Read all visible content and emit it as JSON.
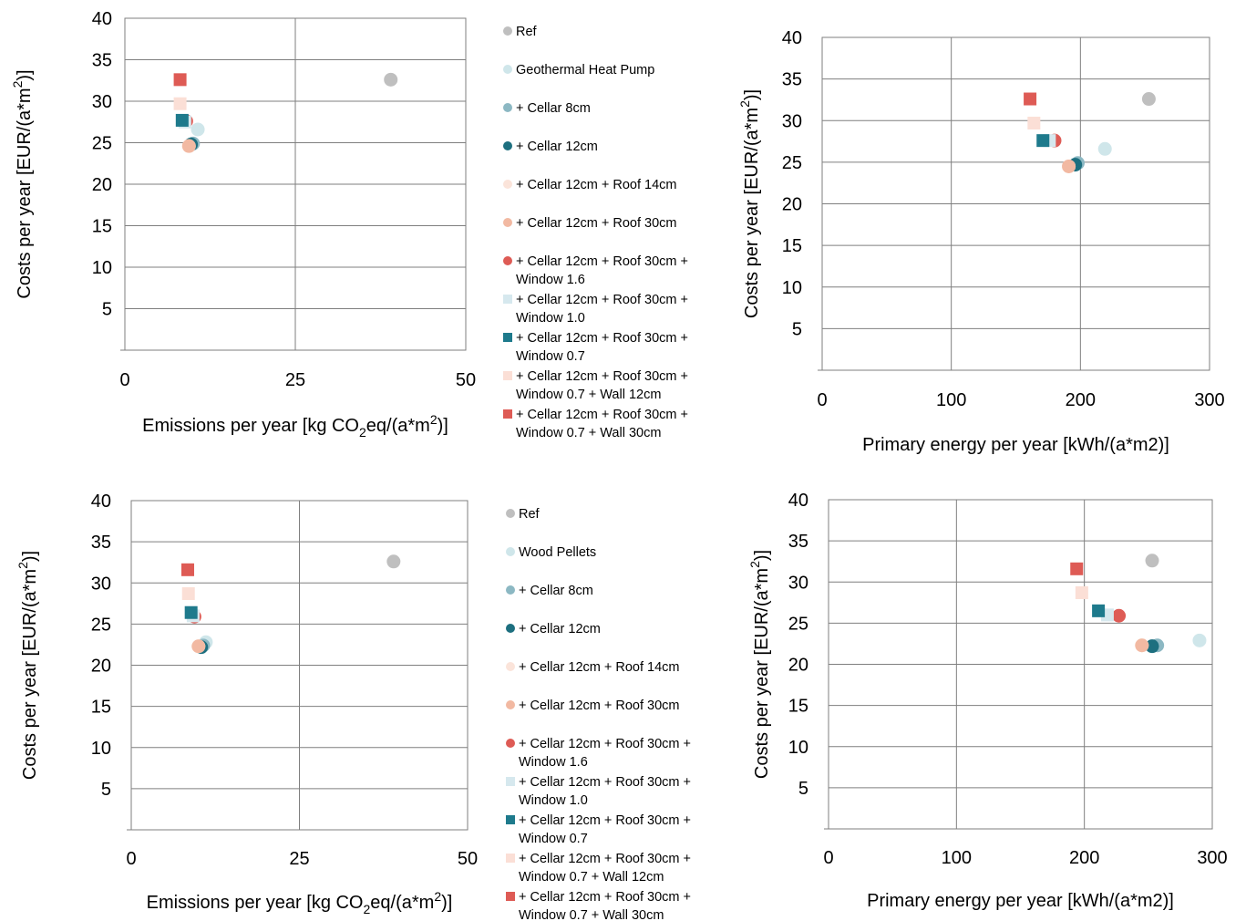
{
  "colors": {
    "ref": "#bfbfbf",
    "primary_option": "#cfe6ea",
    "cellar_8cm": "#8cb8c3",
    "cellar_12cm": "#1d6f7f",
    "roof_14cm": "#fbe4da",
    "roof_30cm": "#f2b9a2",
    "window_16": "#de5b55",
    "window_10": "#d6e8ee",
    "window_07": "#1e7a8c",
    "wall_12cm": "#fbdfd6",
    "wall_30cm": "#de5b55",
    "grid": "#7f7f7f"
  },
  "legends": [
    {
      "entries": [
        {
          "label": [
            "Ref"
          ],
          "color": "ref",
          "marker": "circle"
        },
        {
          "label": [
            "Geothermal Heat Pump"
          ],
          "color": "primary_option",
          "marker": "circle"
        },
        {
          "label": [
            "+ Cellar 8cm"
          ],
          "color": "cellar_8cm",
          "marker": "circle"
        },
        {
          "label": [
            "+ Cellar 12cm"
          ],
          "color": "cellar_12cm",
          "marker": "circle"
        },
        {
          "label": [
            "+ Cellar 12cm + Roof 14cm"
          ],
          "color": "roof_14cm",
          "marker": "circle"
        },
        {
          "label": [
            "+ Cellar 12cm + Roof 30cm"
          ],
          "color": "roof_30cm",
          "marker": "circle"
        },
        {
          "label": [
            "+ Cellar 12cm + Roof 30cm +",
            "Window 1.6"
          ],
          "color": "window_16",
          "marker": "circle"
        },
        {
          "label": [
            "+ Cellar 12cm + Roof 30cm +",
            "Window 1.0"
          ],
          "color": "window_10",
          "marker": "square"
        },
        {
          "label": [
            "+ Cellar 12cm + Roof 30cm +",
            "Window 0.7"
          ],
          "color": "window_07",
          "marker": "square"
        },
        {
          "label": [
            "+ Cellar 12cm + Roof 30cm +",
            "Window 0.7 + Wall 12cm"
          ],
          "color": "wall_12cm",
          "marker": "square"
        },
        {
          "label": [
            "+ Cellar 12cm + Roof 30cm +",
            "Window 0.7 + Wall 30cm"
          ],
          "color": "wall_30cm",
          "marker": "square"
        }
      ]
    },
    {
      "entries": [
        {
          "label": [
            "Ref"
          ],
          "color": "ref",
          "marker": "circle"
        },
        {
          "label": [
            "Wood Pellets"
          ],
          "color": "primary_option",
          "marker": "circle"
        },
        {
          "label": [
            "+ Cellar 8cm"
          ],
          "color": "cellar_8cm",
          "marker": "circle"
        },
        {
          "label": [
            "+ Cellar 12cm"
          ],
          "color": "cellar_12cm",
          "marker": "circle"
        },
        {
          "label": [
            "+ Cellar 12cm + Roof 14cm"
          ],
          "color": "roof_14cm",
          "marker": "circle"
        },
        {
          "label": [
            "+ Cellar 12cm + Roof 30cm"
          ],
          "color": "roof_30cm",
          "marker": "circle"
        },
        {
          "label": [
            "+ Cellar 12cm + Roof 30cm +",
            "Window 1.6"
          ],
          "color": "window_16",
          "marker": "circle"
        },
        {
          "label": [
            "+ Cellar 12cm + Roof 30cm +",
            "Window 1.0"
          ],
          "color": "window_10",
          "marker": "square"
        },
        {
          "label": [
            "+ Cellar 12cm + Roof 30cm +",
            "Window 0.7"
          ],
          "color": "window_07",
          "marker": "square"
        },
        {
          "label": [
            "+ Cellar 12cm + Roof 30cm +",
            "Window 0.7 + Wall 12cm"
          ],
          "color": "wall_12cm",
          "marker": "square"
        },
        {
          "label": [
            "+ Cellar 12cm + Roof 30cm +",
            "Window 0.7 + Wall 30cm"
          ],
          "color": "wall_30cm",
          "marker": "square"
        }
      ]
    }
  ],
  "chart_data": [
    {
      "type": "scatter",
      "title": "",
      "xlabel": {
        "pre": "Emissions per year [kg CO",
        "sub": "2",
        "mid": "eq/(a*m",
        "sup": "2",
        "post": ")]"
      },
      "ylabel": {
        "pre": "Costs per year [EUR/(a*m",
        "sup": "2",
        "post": ")]"
      },
      "xlim": [
        0,
        50
      ],
      "ylim": [
        0,
        40
      ],
      "xticks": [
        0,
        25,
        50
      ],
      "yticks": [
        5,
        10,
        15,
        20,
        25,
        30,
        35,
        40
      ],
      "grid": true,
      "points": [
        {
          "x": 39,
          "y": 32.6,
          "color": "ref",
          "marker": "circle"
        },
        {
          "x": 10.7,
          "y": 26.6,
          "color": "primary_option",
          "marker": "circle"
        },
        {
          "x": 10.0,
          "y": 24.9,
          "color": "cellar_8cm",
          "marker": "circle"
        },
        {
          "x": 9.7,
          "y": 24.8,
          "color": "cellar_12cm",
          "marker": "circle"
        },
        {
          "x": 9.4,
          "y": 24.6,
          "color": "roof_14cm",
          "marker": "circle"
        },
        {
          "x": 9.4,
          "y": 24.6,
          "color": "roof_30cm",
          "marker": "circle"
        },
        {
          "x": 9.0,
          "y": 27.6,
          "color": "window_16",
          "marker": "circle"
        },
        {
          "x": 8.8,
          "y": 27.5,
          "color": "window_10",
          "marker": "square"
        },
        {
          "x": 8.4,
          "y": 27.7,
          "color": "window_07",
          "marker": "square"
        },
        {
          "x": 8.1,
          "y": 29.7,
          "color": "wall_12cm",
          "marker": "square"
        },
        {
          "x": 8.1,
          "y": 32.6,
          "color": "wall_30cm",
          "marker": "square"
        }
      ]
    },
    {
      "type": "scatter",
      "title": "",
      "xlabel": {
        "pre": "Primary energy per year [kWh/(a*m2)]"
      },
      "ylabel": {
        "pre": "Costs per year [EUR/(a*m",
        "sup": "2",
        "post": ")]"
      },
      "xlim": [
        0,
        300
      ],
      "ylim": [
        0,
        40
      ],
      "xticks": [
        0,
        100,
        200,
        300
      ],
      "yticks": [
        5,
        10,
        15,
        20,
        25,
        30,
        35,
        40
      ],
      "grid": true,
      "points": [
        {
          "x": 253,
          "y": 32.6,
          "color": "ref",
          "marker": "circle"
        },
        {
          "x": 219,
          "y": 26.6,
          "color": "primary_option",
          "marker": "circle"
        },
        {
          "x": 198,
          "y": 24.9,
          "color": "cellar_8cm",
          "marker": "circle"
        },
        {
          "x": 196,
          "y": 24.7,
          "color": "cellar_12cm",
          "marker": "circle"
        },
        {
          "x": 191,
          "y": 24.5,
          "color": "roof_14cm",
          "marker": "circle"
        },
        {
          "x": 191,
          "y": 24.5,
          "color": "roof_30cm",
          "marker": "circle"
        },
        {
          "x": 180,
          "y": 27.6,
          "color": "window_16",
          "marker": "circle"
        },
        {
          "x": 176,
          "y": 27.6,
          "color": "window_10",
          "marker": "square"
        },
        {
          "x": 171,
          "y": 27.6,
          "color": "window_07",
          "marker": "square"
        },
        {
          "x": 164,
          "y": 29.7,
          "color": "wall_12cm",
          "marker": "square"
        },
        {
          "x": 161,
          "y": 32.6,
          "color": "wall_30cm",
          "marker": "square"
        }
      ]
    },
    {
      "type": "scatter",
      "title": "",
      "xlabel": {
        "pre": "Emissions per year [kg CO",
        "sub": "2",
        "mid": "eq/(a*m",
        "sup": "2",
        "post": ")]"
      },
      "ylabel": {
        "pre": "Costs per year [EUR/(a*m",
        "sup": "2",
        "post": ")]"
      },
      "xlim": [
        0,
        50
      ],
      "ylim": [
        0,
        40
      ],
      "xticks": [
        0,
        25,
        50
      ],
      "yticks": [
        5,
        10,
        15,
        20,
        25,
        30,
        35,
        40
      ],
      "grid": true,
      "points": [
        {
          "x": 39,
          "y": 32.6,
          "color": "ref",
          "marker": "circle"
        },
        {
          "x": 11.1,
          "y": 22.8,
          "color": "primary_option",
          "marker": "circle"
        },
        {
          "x": 10.7,
          "y": 22.4,
          "color": "cellar_8cm",
          "marker": "circle"
        },
        {
          "x": 10.4,
          "y": 22.2,
          "color": "cellar_12cm",
          "marker": "circle"
        },
        {
          "x": 10.0,
          "y": 22.3,
          "color": "roof_14cm",
          "marker": "circle"
        },
        {
          "x": 10.0,
          "y": 22.3,
          "color": "roof_30cm",
          "marker": "circle"
        },
        {
          "x": 9.4,
          "y": 25.9,
          "color": "window_16",
          "marker": "circle"
        },
        {
          "x": 9.2,
          "y": 26.0,
          "color": "window_10",
          "marker": "square"
        },
        {
          "x": 8.9,
          "y": 26.4,
          "color": "window_07",
          "marker": "square"
        },
        {
          "x": 8.5,
          "y": 28.7,
          "color": "wall_12cm",
          "marker": "square"
        },
        {
          "x": 8.4,
          "y": 31.6,
          "color": "wall_30cm",
          "marker": "square"
        }
      ]
    },
    {
      "type": "scatter",
      "title": "",
      "xlabel": {
        "pre": "Primary energy per year [kWh/(a*m2)]"
      },
      "ylabel": {
        "pre": "Costs per year [EUR/(a*m",
        "sup": "2",
        "post": ")]"
      },
      "xlim": [
        0,
        300
      ],
      "ylim": [
        0,
        40
      ],
      "xticks": [
        0,
        100,
        200,
        300
      ],
      "yticks": [
        5,
        10,
        15,
        20,
        25,
        30,
        35,
        40
      ],
      "grid": true,
      "points": [
        {
          "x": 253,
          "y": 32.6,
          "color": "ref",
          "marker": "circle"
        },
        {
          "x": 290,
          "y": 22.9,
          "color": "primary_option",
          "marker": "circle"
        },
        {
          "x": 257,
          "y": 22.3,
          "color": "cellar_8cm",
          "marker": "circle"
        },
        {
          "x": 253,
          "y": 22.2,
          "color": "cellar_12cm",
          "marker": "circle"
        },
        {
          "x": 245,
          "y": 22.3,
          "color": "roof_14cm",
          "marker": "circle"
        },
        {
          "x": 245,
          "y": 22.3,
          "color": "roof_30cm",
          "marker": "circle"
        },
        {
          "x": 227,
          "y": 25.9,
          "color": "window_16",
          "marker": "circle"
        },
        {
          "x": 218,
          "y": 26.0,
          "color": "window_10",
          "marker": "square"
        },
        {
          "x": 211,
          "y": 26.5,
          "color": "window_07",
          "marker": "square"
        },
        {
          "x": 198,
          "y": 28.7,
          "color": "wall_12cm",
          "marker": "square"
        },
        {
          "x": 194,
          "y": 31.6,
          "color": "wall_30cm",
          "marker": "square"
        }
      ]
    }
  ]
}
